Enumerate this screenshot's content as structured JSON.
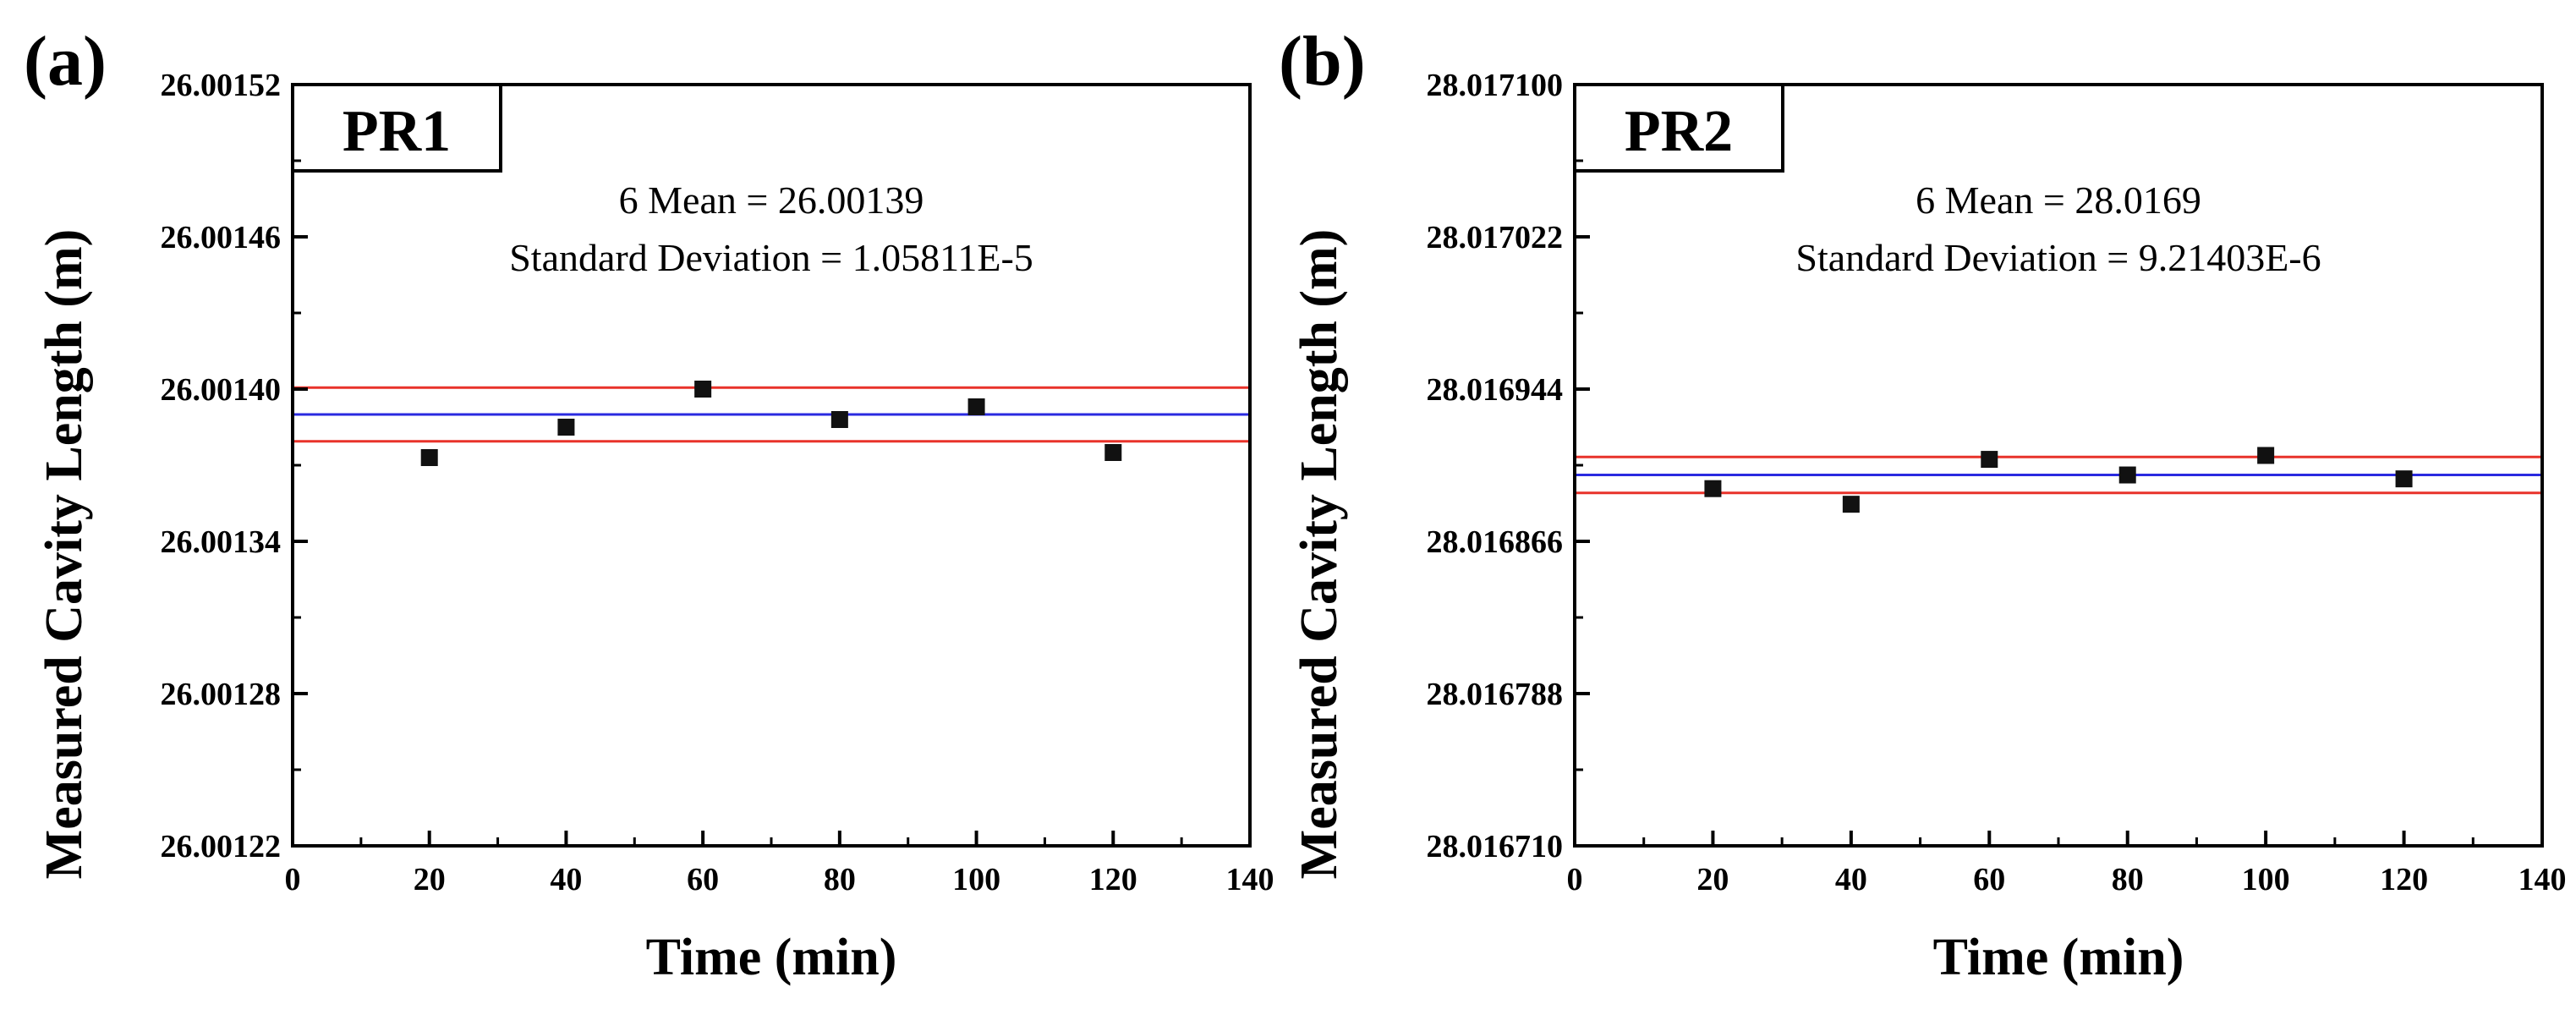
{
  "chart_data": [
    {
      "panel": "(a)",
      "type": "scatter",
      "title": "PR1",
      "xlabel": "Time (min)",
      "ylabel": "Measured Cavity Length (m)",
      "xlim": [
        0,
        140
      ],
      "ylim": [
        26.00122,
        26.00152
      ],
      "xticks": [
        0,
        20,
        40,
        60,
        80,
        100,
        120,
        140
      ],
      "xtick_labels": [
        "0",
        "20",
        "40",
        "60",
        "80",
        "100",
        "120",
        "140"
      ],
      "yticks": [
        26.00122,
        26.00128,
        26.00134,
        26.0014,
        26.00146,
        26.00152
      ],
      "ytick_labels": [
        "26.00122",
        "26.00128",
        "26.00134",
        "26.00140",
        "26.00146",
        "26.00152"
      ],
      "x": [
        20,
        40,
        60,
        80,
        100,
        120
      ],
      "y": [
        26.001373,
        26.001385,
        26.0014,
        26.001388,
        26.001393,
        26.001375
      ],
      "mean": 26.00139,
      "std": 1.05811e-05,
      "mean_line_color": "#2a2ae0",
      "std_line_color": "#e8322a",
      "marker_color": "#111111",
      "annotations": [
        "6 Mean = 26.00139",
        "Standard Deviation = 1.05811E-5"
      ]
    },
    {
      "panel": "(b)",
      "type": "scatter",
      "title": "PR2",
      "xlabel": "Time (min)",
      "ylabel": "Measured Cavity Length (m)",
      "xlim": [
        0,
        140
      ],
      "ylim": [
        28.01671,
        28.0171
      ],
      "xticks": [
        0,
        20,
        40,
        60,
        80,
        100,
        120,
        140
      ],
      "xtick_labels": [
        "0",
        "20",
        "40",
        "60",
        "80",
        "100",
        "120",
        "140"
      ],
      "yticks": [
        28.01671,
        28.016788,
        28.016866,
        28.016944,
        28.017022,
        28.0171
      ],
      "ytick_labels": [
        "28.016710",
        "28.016788",
        "28.016866",
        "28.016944",
        "28.017022",
        "28.017100"
      ],
      "x": [
        20,
        40,
        60,
        80,
        100,
        120
      ],
      "y": [
        28.016893,
        28.016885,
        28.016908,
        28.0169,
        28.01691,
        28.016898
      ],
      "mean": 28.0169,
      "std": 9.21403e-06,
      "mean_line_color": "#2a2ae0",
      "std_line_color": "#e8322a",
      "marker_color": "#111111",
      "annotations": [
        "6 Mean = 28.0169",
        "Standard Deviation = 9.21403E-6"
      ]
    }
  ]
}
